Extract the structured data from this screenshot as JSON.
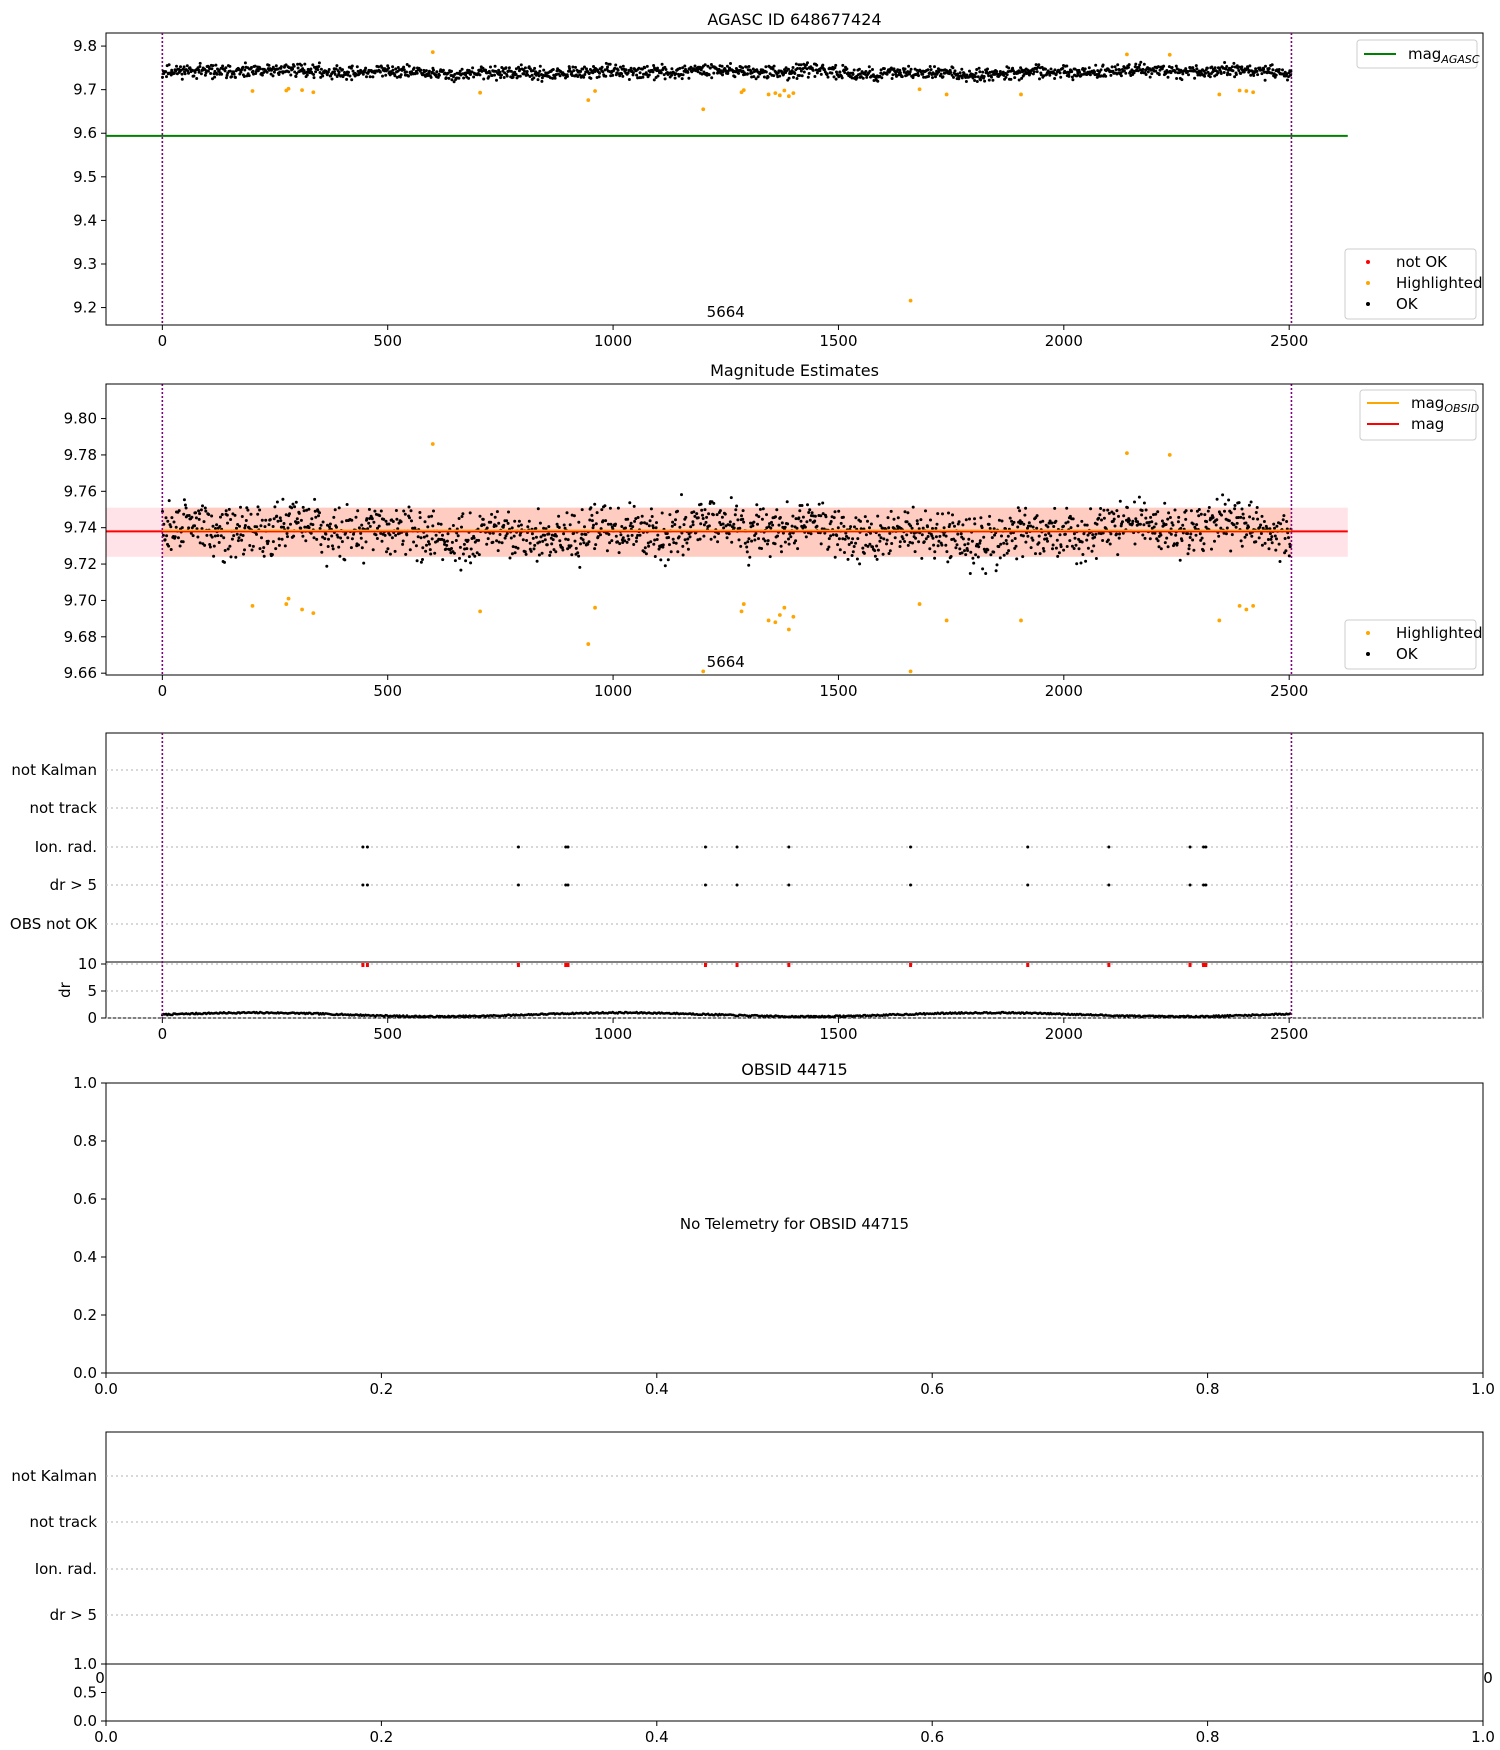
{
  "chart_data": [
    {
      "type": "scatter",
      "title": "AGASC ID 648677424",
      "xlim": [
        -125,
        2930
      ],
      "ylim": [
        9.16,
        9.83
      ],
      "xticks": [
        0,
        500,
        1000,
        1500,
        2000,
        2500
      ],
      "yticks": [
        9.2,
        9.3,
        9.4,
        9.5,
        9.6,
        9.7,
        9.8
      ],
      "y_decimals": 1,
      "obsid_marker": {
        "label": "5664",
        "x": 1250
      },
      "vlines": [
        0,
        2505
      ],
      "hlines": [
        {
          "name": "mag_AGASC",
          "y": 9.594,
          "x_range": [
            -125,
            2630
          ],
          "color": "#008000"
        }
      ],
      "ok_series": {
        "name": "OK",
        "y_range": [
          9.7,
          9.78
        ],
        "n": 1700
      },
      "highlighted": {
        "name": "Highlighted",
        "points": [
          [
            200,
            9.697
          ],
          [
            275,
            9.698
          ],
          [
            280,
            9.702
          ],
          [
            310,
            9.699
          ],
          [
            335,
            9.694
          ],
          [
            600,
            9.786
          ],
          [
            705,
            9.693
          ],
          [
            945,
            9.676
          ],
          [
            960,
            9.697
          ],
          [
            1200,
            9.655
          ],
          [
            1285,
            9.694
          ],
          [
            1290,
            9.699
          ],
          [
            1345,
            9.689
          ],
          [
            1360,
            9.692
          ],
          [
            1370,
            9.687
          ],
          [
            1380,
            9.698
          ],
          [
            1390,
            9.685
          ],
          [
            1400,
            9.692
          ],
          [
            1660,
            9.216
          ],
          [
            1680,
            9.701
          ],
          [
            1740,
            9.689
          ],
          [
            1905,
            9.689
          ],
          [
            2140,
            9.781
          ],
          [
            2235,
            9.78
          ],
          [
            2345,
            9.689
          ],
          [
            2390,
            9.698
          ],
          [
            2405,
            9.697
          ],
          [
            2420,
            9.694
          ]
        ]
      },
      "legend_top": [
        {
          "label": "mag",
          "sub": "AGASC",
          "color": "#008000"
        }
      ],
      "legend_bottom": [
        {
          "label": "not OK",
          "color": "#ff0000"
        },
        {
          "label": "Highlighted",
          "color": "#ffa500"
        },
        {
          "label": "OK",
          "color": "#000000"
        }
      ]
    },
    {
      "type": "scatter",
      "title": "Magnitude Estimates",
      "xlim": [
        -125,
        2930
      ],
      "ylim": [
        9.659,
        9.819
      ],
      "xticks": [
        0,
        500,
        1000,
        1500,
        2000,
        2500
      ],
      "yticks": [
        9.66,
        9.68,
        9.7,
        9.72,
        9.74,
        9.76,
        9.78,
        9.8
      ],
      "y_decimals": 2,
      "obsid_marker": {
        "label": "5664",
        "x": 1250
      },
      "vlines": [
        0,
        2505
      ],
      "band": {
        "y_low": 9.724,
        "y_high": 9.751,
        "x_range": [
          -125,
          2630
        ]
      },
      "inner_band": {
        "y_low": 9.724,
        "y_high": 9.751,
        "x_range": [
          0,
          2505
        ]
      },
      "mag_line": {
        "name": "mag",
        "y": 9.738
      },
      "ok_series": {
        "name": "OK",
        "y_range": [
          9.7,
          9.775
        ],
        "n": 1700
      },
      "highlighted": {
        "name": "Highlighted",
        "points": [
          [
            200,
            9.697
          ],
          [
            275,
            9.698
          ],
          [
            280,
            9.701
          ],
          [
            310,
            9.695
          ],
          [
            335,
            9.693
          ],
          [
            600,
            9.786
          ],
          [
            705,
            9.694
          ],
          [
            945,
            9.676
          ],
          [
            960,
            9.696
          ],
          [
            1200,
            9.661
          ],
          [
            1285,
            9.694
          ],
          [
            1290,
            9.698
          ],
          [
            1345,
            9.689
          ],
          [
            1360,
            9.688
          ],
          [
            1370,
            9.692
          ],
          [
            1380,
            9.696
          ],
          [
            1390,
            9.684
          ],
          [
            1400,
            9.691
          ],
          [
            1660,
            9.661
          ],
          [
            1680,
            9.698
          ],
          [
            1740,
            9.689
          ],
          [
            1905,
            9.689
          ],
          [
            2140,
            9.781
          ],
          [
            2235,
            9.78
          ],
          [
            2345,
            9.689
          ],
          [
            2390,
            9.697
          ],
          [
            2405,
            9.695
          ],
          [
            2420,
            9.697
          ]
        ]
      },
      "legend_top": [
        {
          "label": "mag",
          "sub": "OBSID",
          "color": "#ffa500"
        },
        {
          "label": "mag",
          "sub": "",
          "color": "#ff0000"
        }
      ],
      "legend_bottom": [
        {
          "label": "Highlighted",
          "color": "#ffa500"
        },
        {
          "label": "OK",
          "color": "#000000"
        }
      ]
    },
    {
      "type": "scatter",
      "title": "",
      "xlim": [
        -125,
        2930
      ],
      "xticks": [
        0,
        500,
        1000,
        1500,
        2000,
        2500
      ],
      "vlines": [
        0,
        2505
      ],
      "flag_categories": [
        "not Kalman",
        "not track",
        "Ion. rad.",
        "dr > 5",
        "OBS not OK"
      ],
      "flag_events": {
        "Ion. rad.": [
          445,
          455,
          790,
          895,
          900,
          1205,
          1275,
          1390,
          1660,
          1920,
          2100,
          2280,
          2310,
          2315
        ],
        "dr > 5": [
          445,
          455,
          790,
          895,
          900,
          1205,
          1275,
          1390,
          1660,
          1920,
          2100,
          2280,
          2310,
          2315
        ]
      },
      "dr_panel": {
        "ylabel": "dr",
        "ylim": [
          0,
          10
        ],
        "yticks": [
          0,
          5,
          10
        ],
        "typical_range": [
          0.0,
          1.2
        ]
      }
    },
    {
      "type": "scatter",
      "title": "OBSID 44715",
      "message": "No Telemetry for OBSID 44715",
      "xlim": [
        0,
        1
      ],
      "ylim": [
        0,
        1
      ],
      "xticks": [
        0.0,
        0.2,
        0.4,
        0.6,
        0.8,
        1.0
      ],
      "yticks": [
        0.0,
        0.2,
        0.4,
        0.6,
        0.8,
        1.0
      ]
    },
    {
      "type": "scatter",
      "title": "",
      "flag_categories": [
        "not Kalman",
        "not track",
        "Ion. rad.",
        "dr > 5"
      ],
      "overlapped_tick_labels": [
        "0",
        "0"
      ],
      "sub_panel": {
        "xlim": [
          0,
          1
        ],
        "ylim": [
          0,
          1
        ],
        "xticks": [
          0.0,
          0.2,
          0.4,
          0.6,
          0.8,
          1.0
        ],
        "yticks": [
          0.0,
          0.5,
          1.0
        ]
      }
    }
  ]
}
